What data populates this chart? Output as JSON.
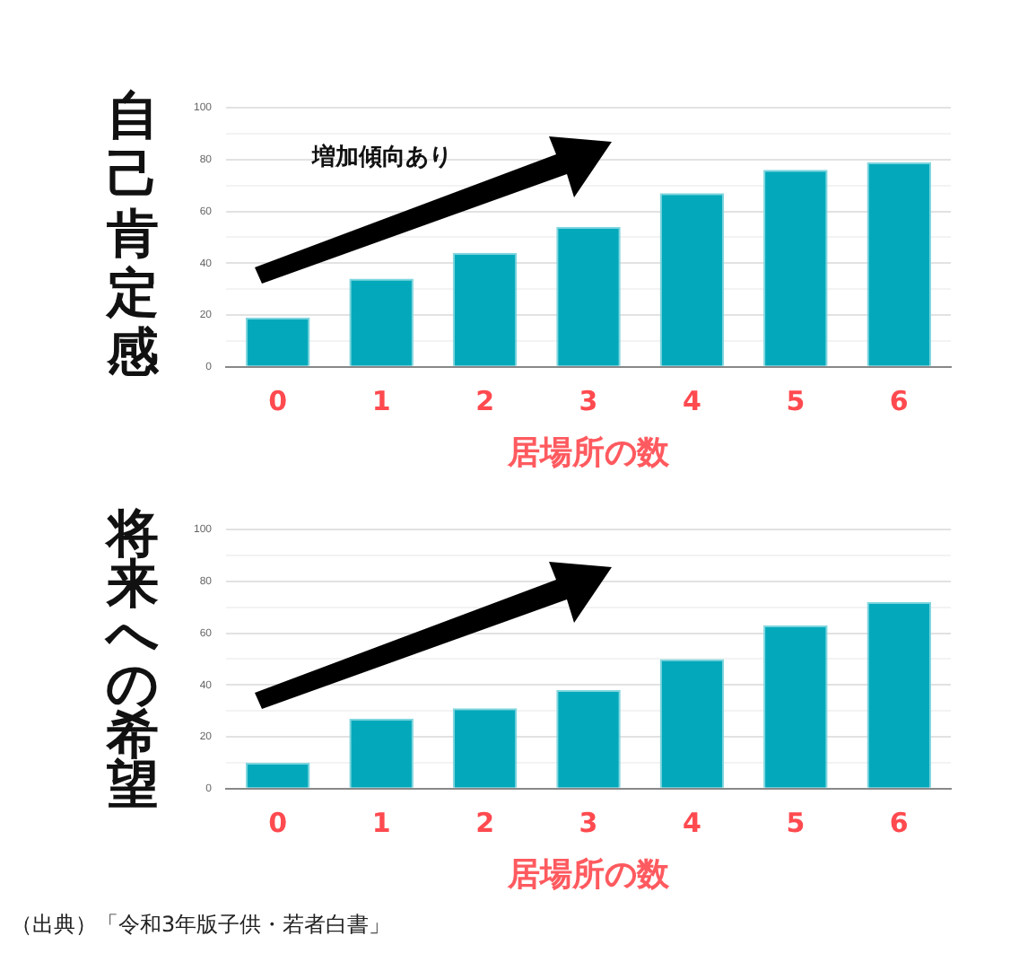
{
  "chart_data": [
    {
      "type": "bar",
      "ylabel": "自己肯定感",
      "xlabel": "居場所の数",
      "categories": [
        "0",
        "1",
        "2",
        "3",
        "4",
        "5",
        "6"
      ],
      "values": [
        19,
        34,
        44,
        54,
        67,
        76,
        79
      ],
      "color": "#03a9bb",
      "ylim": [
        0,
        100
      ],
      "yticks": [
        0,
        {
          "value": 10,
          "label": null
        },
        20,
        {
          "value": 30,
          "label": null
        },
        40,
        {
          "value": 50,
          "label": null
        },
        60,
        {
          "value": 70,
          "label": null
        },
        80,
        {
          "value": 90,
          "label": null
        },
        100
      ],
      "grid": "y",
      "legend": false,
      "annotations": [
        "増加傾向あり"
      ]
    },
    {
      "type": "bar",
      "ylabel": "将来への希望",
      "xlabel": "居場所の数",
      "categories": [
        "0",
        "1",
        "2",
        "3",
        "4",
        "5",
        "6"
      ],
      "values": [
        10,
        27,
        31,
        38,
        50,
        63,
        72
      ],
      "color": "#03a9bb",
      "ylim": [
        0,
        100
      ],
      "yticks": [
        0,
        {
          "value": 10,
          "label": null
        },
        20,
        {
          "value": 30,
          "label": null
        },
        40,
        {
          "value": 50,
          "label": null
        },
        60,
        {
          "value": 70,
          "label": null
        },
        80,
        {
          "value": 90,
          "label": null
        },
        100
      ],
      "grid": "y",
      "legend": false,
      "annotations": [
        "（出典）「令和3年版子供・若者白書」"
      ]
    }
  ]
}
